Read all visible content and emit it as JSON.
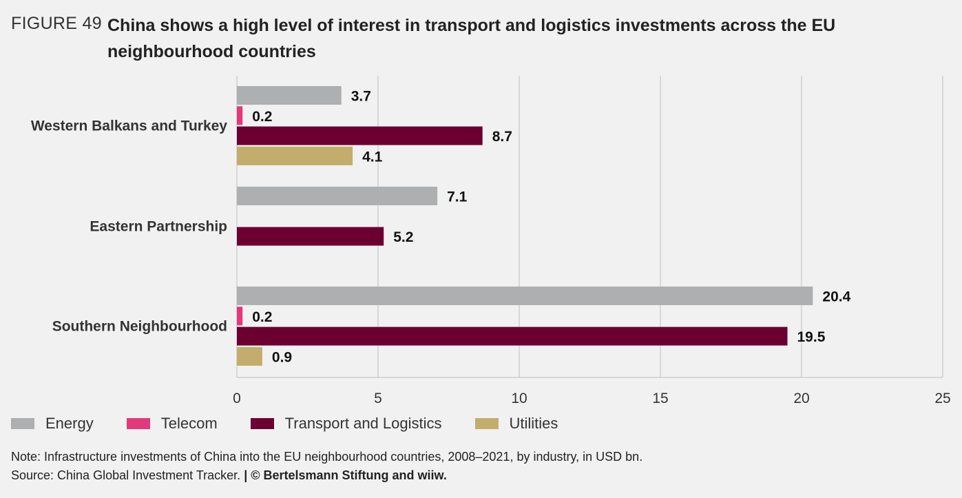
{
  "figure_label": "FIGURE 49",
  "title": "China shows a high level of interest in transport and logistics investments across the EU neighbourhood countries",
  "chart_data": {
    "type": "bar",
    "orientation": "horizontal",
    "categories": [
      "Western Balkans and Turkey",
      "Eastern Partnership",
      "Southern Neighbourhood"
    ],
    "series": [
      {
        "name": "Energy",
        "color": "#adafb0",
        "values": [
          3.7,
          7.1,
          20.4
        ]
      },
      {
        "name": "Telecom",
        "color": "#e1397b",
        "values": [
          0.2,
          null,
          0.2
        ]
      },
      {
        "name": "Transport and Logistics",
        "color": "#6b0030",
        "values": [
          8.7,
          5.2,
          19.5
        ]
      },
      {
        "name": "Utilities",
        "color": "#c2ad6c",
        "values": [
          4.1,
          null,
          0.9
        ]
      }
    ],
    "xlim": [
      0,
      25
    ],
    "xticks": [
      0,
      5,
      10,
      15,
      20,
      25
    ],
    "grid": true,
    "legend": "bottom-left"
  },
  "legend": {
    "items": [
      {
        "label": "Energy",
        "color": "#adafb0"
      },
      {
        "label": "Telecom",
        "color": "#e1397b"
      },
      {
        "label": "Transport and Logistics",
        "color": "#6b0030"
      },
      {
        "label": "Utilities",
        "color": "#c2ad6c"
      }
    ]
  },
  "note": {
    "line1": "Note: Infrastructure investments of China into the EU neighbourhood countries, 2008–2021, by industry, in USD bn.",
    "source": "Source: China Global Investment Tracker.",
    "separator": "|",
    "copyright": "© Bertelsmann Stiftung and wiiw."
  }
}
